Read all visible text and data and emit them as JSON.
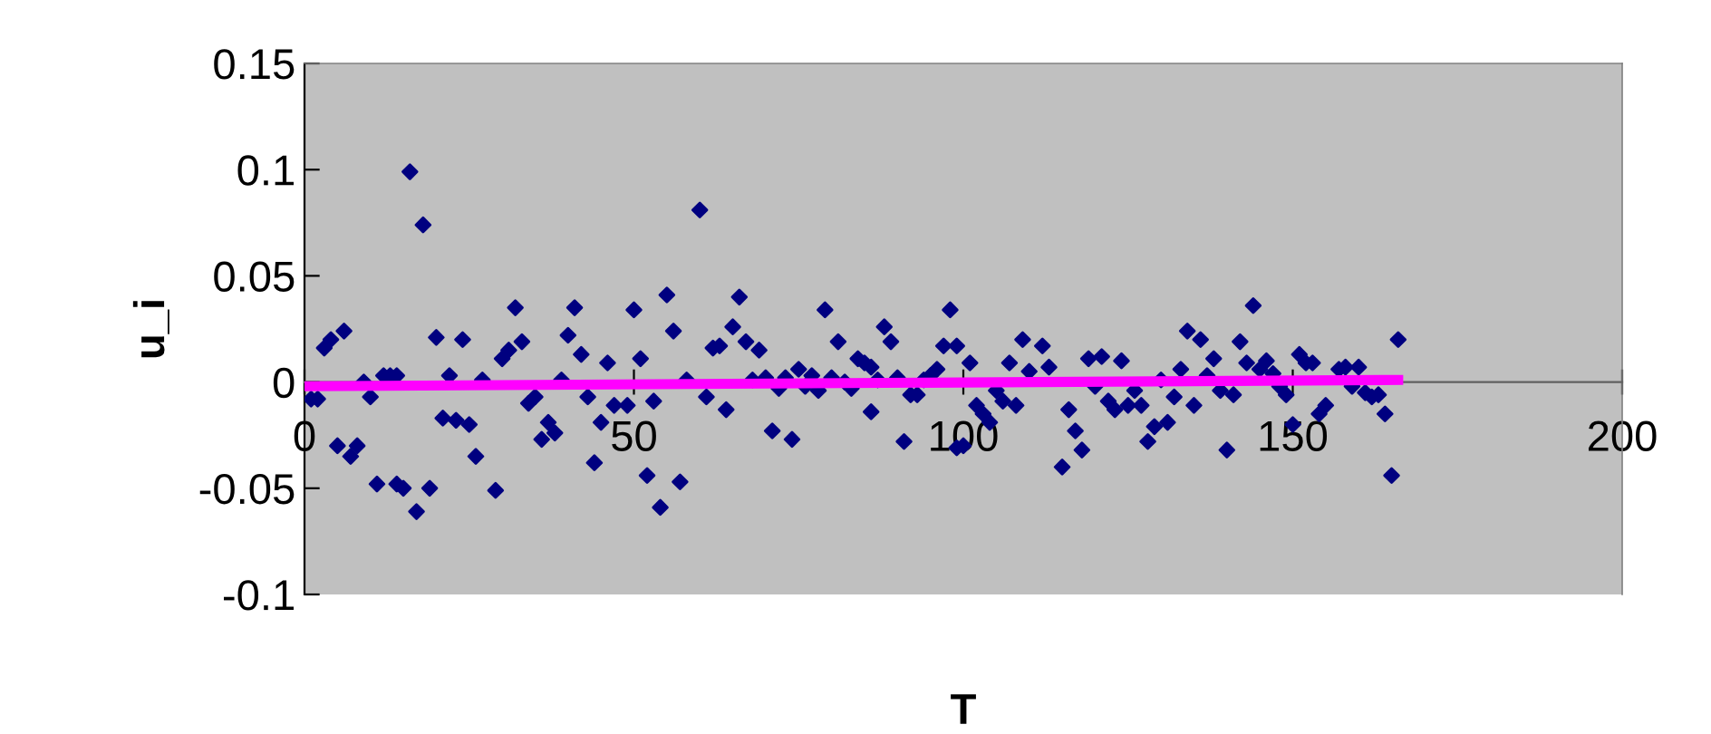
{
  "chart_data": {
    "type": "scatter",
    "xlabel": "T",
    "ylabel": "u_i",
    "xlim": [
      0,
      200
    ],
    "xticks": [
      0,
      50,
      100,
      150,
      200
    ],
    "ylim": [
      -0.1,
      0.15
    ],
    "yticks": [
      -0.1,
      -0.05,
      0,
      0.05,
      0.1,
      0.15
    ],
    "grid": false,
    "marker": "diamond",
    "series": [
      {
        "color": "#000080",
        "x": [
          1,
          2,
          3,
          4,
          5,
          6,
          7,
          8,
          9,
          10,
          11,
          12,
          13,
          14,
          14,
          15,
          16,
          17,
          18,
          19,
          20,
          21,
          22,
          23,
          24,
          25,
          26,
          27,
          29,
          30,
          31,
          32,
          33,
          34,
          35,
          36,
          37,
          38,
          39,
          40,
          41,
          42,
          43,
          44,
          45,
          46,
          47,
          49,
          50,
          51,
          52,
          53,
          54,
          55,
          56,
          57,
          58,
          60,
          61,
          62,
          63,
          64,
          65,
          66,
          67,
          68,
          69,
          70,
          71,
          72,
          73,
          74,
          75,
          76,
          77,
          78,
          79,
          80,
          81,
          82,
          83,
          84,
          85,
          86,
          86,
          87,
          88,
          89,
          90,
          91,
          92,
          93,
          94,
          95,
          96,
          97,
          98,
          99,
          99,
          100,
          101,
          102,
          103,
          104,
          105,
          106,
          107,
          108,
          109,
          110,
          112,
          113,
          115,
          116,
          117,
          118,
          119,
          120,
          121,
          122,
          123,
          124,
          125,
          126,
          127,
          128,
          129,
          130,
          131,
          132,
          133,
          134,
          135,
          136,
          137,
          138,
          139,
          140,
          141,
          142,
          143,
          144,
          145,
          146,
          147,
          148,
          149,
          150,
          151,
          152,
          153,
          154,
          155,
          157,
          158,
          159,
          160,
          161,
          162,
          163,
          164,
          165,
          166
        ],
        "values": [
          -0.008,
          -0.008,
          0.016,
          0.02,
          -0.03,
          0.024,
          -0.035,
          -0.03,
          0.0,
          -0.007,
          -0.048,
          0.003,
          0.003,
          0.003,
          -0.048,
          -0.05,
          0.099,
          -0.061,
          0.074,
          -0.05,
          0.021,
          -0.017,
          0.003,
          -0.018,
          0.02,
          -0.02,
          -0.035,
          0.001,
          -0.051,
          0.011,
          0.015,
          0.035,
          0.019,
          -0.01,
          -0.007,
          -0.027,
          -0.019,
          -0.024,
          0.001,
          0.022,
          0.035,
          0.013,
          -0.007,
          -0.038,
          -0.019,
          0.009,
          -0.011,
          -0.011,
          0.034,
          0.011,
          -0.044,
          -0.009,
          -0.059,
          0.041,
          0.024,
          -0.047,
          0.001,
          0.081,
          -0.007,
          0.016,
          0.017,
          -0.013,
          0.026,
          0.04,
          0.019,
          0.001,
          0.015,
          0.002,
          -0.023,
          -0.003,
          0.002,
          -0.027,
          0.006,
          -0.002,
          0.003,
          -0.004,
          0.034,
          0.002,
          0.019,
          0.0,
          -0.003,
          0.011,
          0.009,
          0.007,
          -0.014,
          0.001,
          0.026,
          0.019,
          0.002,
          -0.028,
          -0.006,
          -0.006,
          0.001,
          0.003,
          0.006,
          0.017,
          0.034,
          0.017,
          -0.031,
          -0.03,
          0.009,
          -0.011,
          -0.015,
          -0.019,
          -0.004,
          -0.009,
          0.009,
          -0.011,
          0.02,
          0.005,
          0.017,
          0.007,
          -0.04,
          -0.013,
          -0.023,
          -0.032,
          0.011,
          -0.002,
          0.012,
          -0.009,
          -0.013,
          0.01,
          -0.011,
          -0.004,
          -0.011,
          -0.028,
          -0.021,
          0.001,
          -0.019,
          -0.007,
          0.006,
          0.024,
          -0.011,
          0.02,
          0.003,
          0.011,
          -0.004,
          -0.032,
          -0.006,
          0.019,
          0.009,
          0.036,
          0.006,
          0.01,
          0.004,
          -0.002,
          -0.006,
          -0.02,
          0.013,
          0.009,
          0.009,
          -0.015,
          -0.011,
          0.006,
          0.007,
          -0.002,
          0.007,
          -0.005,
          -0.007,
          -0.006,
          -0.015,
          -0.044,
          0.02
        ]
      },
      {
        "type": "line",
        "color": "#ff00ff",
        "marker": "none",
        "x": [
          0,
          166
        ],
        "values": [
          -0.002,
          0.001
        ]
      }
    ]
  }
}
